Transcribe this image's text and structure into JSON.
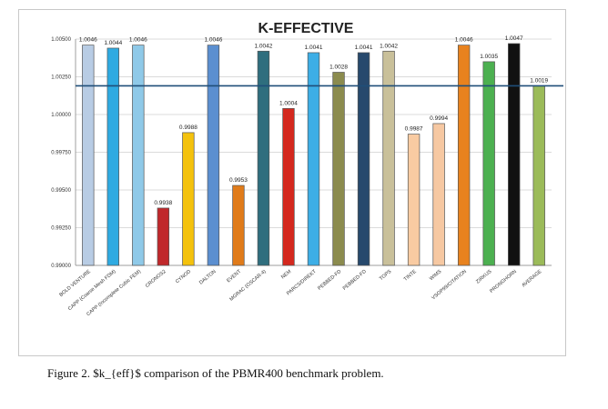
{
  "caption": "Figure 2. $k_{eff}$ comparison of the PBMR400 benchmark problem.",
  "chart_data": {
    "type": "bar",
    "title": "K-EFFECTIVE",
    "xlabel": "",
    "ylabel": "",
    "ylim": [
      0.99,
      1.005
    ],
    "yticks": [
      "0.99000",
      "0.99250",
      "0.99500",
      "0.99750",
      "1.00000",
      "1.00250",
      "1.00500"
    ],
    "ytick_values": [
      0.99,
      0.9925,
      0.995,
      0.9975,
      1.0,
      1.0025,
      1.005
    ],
    "grid": true,
    "categories": [
      "BOLD VENTURE",
      "CAPP (Coarse Mesh FDM)",
      "CAPP (Incomplete Cubic FEM)",
      "CRONOS2",
      "CYNOD",
      "DALTON",
      "EVENT",
      "MGRAC (OSCAR-4)",
      "NEM",
      "PARCS/DIREKT",
      "PEBBED-FD",
      "PEBBED-FD",
      "TOPS",
      "TINTE",
      "WIMS",
      "VSOP99/CITATION",
      "ZIRKUS",
      "PRONGHORN",
      "AVERAGE"
    ],
    "values": [
      1.0046,
      1.0044,
      1.0046,
      0.9938,
      0.9988,
      1.0046,
      0.9953,
      1.0042,
      1.0004,
      1.0041,
      1.0028,
      1.0041,
      1.0042,
      0.9987,
      0.9994,
      1.0046,
      1.0035,
      1.0047,
      1.0019
    ],
    "value_labels": [
      "1.0046",
      "1.0044",
      "1.0046",
      "0.9938",
      "0.9988",
      "1.0046",
      "0.9953",
      "1.0042",
      "1.0004",
      "1.0041",
      "1.0028",
      "1.0041",
      "1.0042",
      "0.9987",
      "0.9994",
      "1.0046",
      "1.0035",
      "1.0047",
      "1.0019"
    ],
    "colors": [
      "#b8cce4",
      "#2eaae1",
      "#8fc9e8",
      "#c0282b",
      "#f4c20d",
      "#5b8fd0",
      "#e07b1a",
      "#2f6e7e",
      "#d4281e",
      "#3daee6",
      "#8b8b4e",
      "#27496d",
      "#c9c09a",
      "#f9cba2",
      "#f6c8a2",
      "#e8821e",
      "#4cb050",
      "#111111",
      "#9bbb59"
    ],
    "reference_line": {
      "value": 1.0019,
      "color": "#1f4e79"
    }
  }
}
